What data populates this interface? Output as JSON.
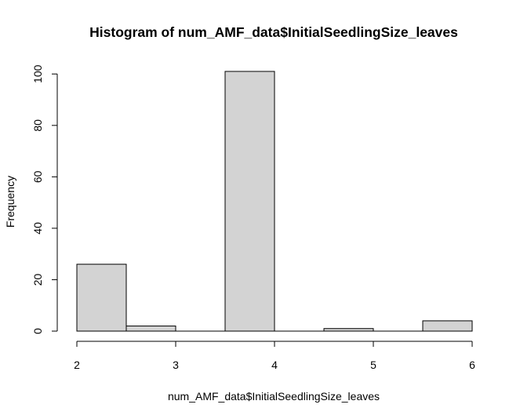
{
  "chart_data": {
    "type": "bar",
    "title": "Histogram of num_AMF_data$InitialSeedlingSize_leaves",
    "xlabel": "num_AMF_data$InitialSeedlingSize_leaves",
    "ylabel": "Frequency",
    "bins": [
      {
        "start": 2.0,
        "end": 2.5,
        "count": 26
      },
      {
        "start": 2.5,
        "end": 3.0,
        "count": 2
      },
      {
        "start": 3.0,
        "end": 3.5,
        "count": 0
      },
      {
        "start": 3.5,
        "end": 4.0,
        "count": 101
      },
      {
        "start": 4.0,
        "end": 4.5,
        "count": 0
      },
      {
        "start": 4.5,
        "end": 5.0,
        "count": 1
      },
      {
        "start": 5.0,
        "end": 5.5,
        "count": 0
      },
      {
        "start": 5.5,
        "end": 6.0,
        "count": 4
      }
    ],
    "x_ticks": [
      "2",
      "3",
      "4",
      "5",
      "6"
    ],
    "y_ticks": [
      "0",
      "20",
      "40",
      "60",
      "80",
      "100"
    ],
    "xlim": [
      2,
      6
    ],
    "ylim": [
      0,
      101
    ],
    "bar_color": "#d3d3d3",
    "grid": false,
    "legend": false
  }
}
